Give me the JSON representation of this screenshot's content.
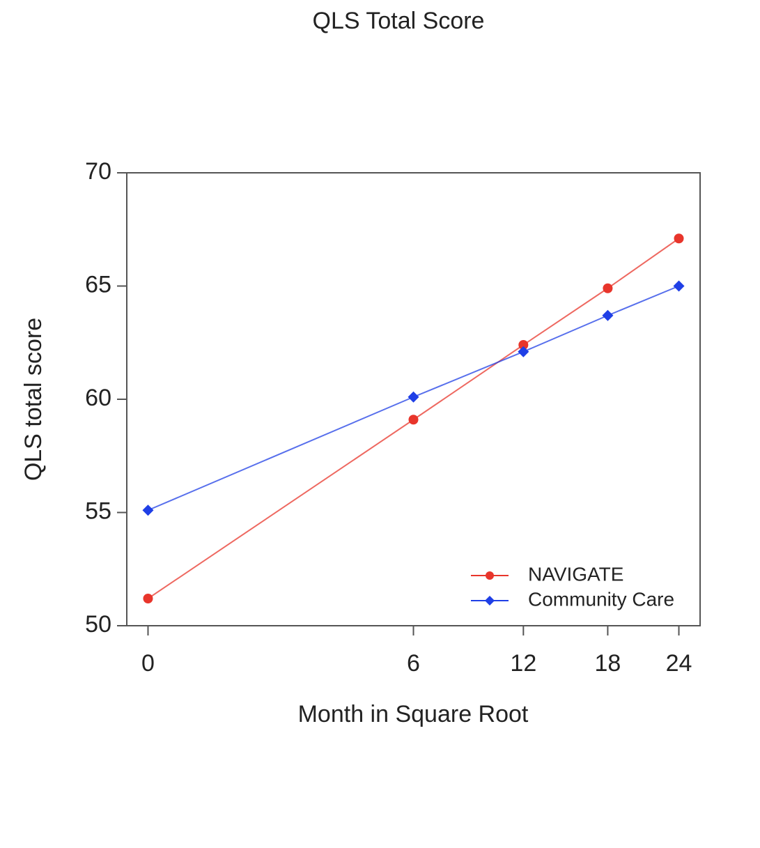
{
  "chart_data": {
    "type": "line",
    "title": "QLS Total Score",
    "x_label": "Month in Square Root",
    "y_label": "QLS total score",
    "x": [
      0,
      6,
      12,
      18,
      24
    ],
    "xscale": "sqrt",
    "xlim": [
      0,
      24
    ],
    "xticks": [
      0,
      6,
      12,
      18,
      24
    ],
    "ylim": [
      50,
      70
    ],
    "yticks": [
      50,
      55,
      60,
      65,
      70
    ],
    "legend": "lower right",
    "series": [
      {
        "name": "NAVIGATE",
        "color": "#e8352b",
        "marker": "circle",
        "values": [
          51.2,
          59.1,
          62.4,
          64.9,
          67.1
        ]
      },
      {
        "name": "Community Care",
        "color": "#1f3fe6",
        "marker": "diamond",
        "values": [
          55.1,
          60.1,
          62.1,
          63.7,
          65.0
        ]
      }
    ]
  }
}
